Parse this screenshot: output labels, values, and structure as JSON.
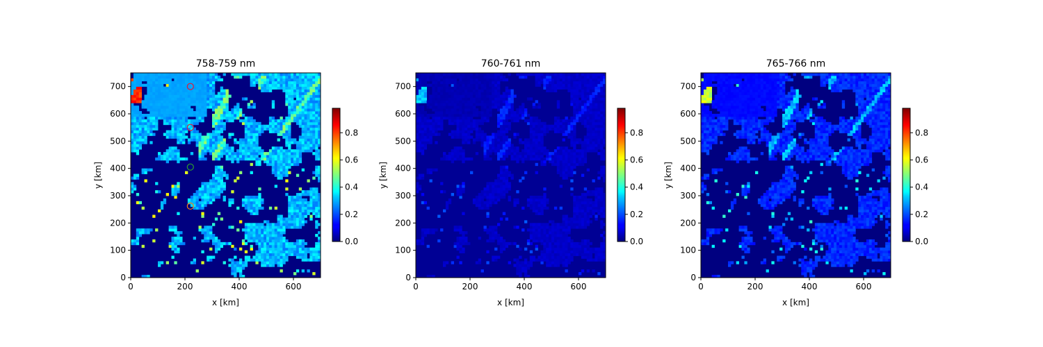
{
  "chart_data": [
    {
      "type": "heatmap",
      "title": "758-759 nm",
      "xlabel": "x [km]",
      "ylabel": "y [km]",
      "xlim": [
        0,
        700
      ],
      "ylim": [
        0,
        750
      ],
      "xticks": [
        0,
        200,
        400,
        600
      ],
      "yticks": [
        0,
        100,
        200,
        300,
        400,
        500,
        600,
        700
      ],
      "colormap": "jet",
      "colorbar": {
        "range": [
          0.0,
          0.98
        ],
        "ticks": [
          "0.0",
          "0.2",
          "0.4",
          "0.6",
          "0.8"
        ]
      },
      "background_level": 0.0,
      "cloud_level": 0.3,
      "upper_cloud_level": 0.28,
      "streak_level": 0.45,
      "markers": [
        {
          "x": 220,
          "y": 700,
          "color": "#e0193a"
        },
        {
          "x": 220,
          "y": 550,
          "color": "#e0193a"
        },
        {
          "x": 220,
          "y": 405,
          "color": "#2ca02c"
        },
        {
          "x": 220,
          "y": 262,
          "color": "#ff7f0e"
        }
      ]
    },
    {
      "type": "heatmap",
      "title": "760-761 nm",
      "xlabel": "x [km]",
      "ylabel": "y [km]",
      "xlim": [
        0,
        700
      ],
      "ylim": [
        0,
        750
      ],
      "xticks": [
        0,
        200,
        400,
        600
      ],
      "yticks": [
        0,
        100,
        200,
        300,
        400,
        500,
        600,
        700
      ],
      "colormap": "jet",
      "colorbar": {
        "range": [
          0.0,
          0.98
        ],
        "ticks": [
          "0.0",
          "0.2",
          "0.4",
          "0.6",
          "0.8"
        ]
      },
      "background_level": 0.02,
      "cloud_level": 0.07,
      "upper_cloud_level": 0.05,
      "streak_level": 0.15,
      "markers": []
    },
    {
      "type": "heatmap",
      "title": "765-766 nm",
      "xlabel": "x [km]",
      "ylabel": "y [km]",
      "xlim": [
        0,
        700
      ],
      "ylim": [
        0,
        750
      ],
      "xticks": [
        0,
        200,
        400,
        600
      ],
      "yticks": [
        0,
        100,
        200,
        300,
        400,
        500,
        600,
        700
      ],
      "colormap": "jet",
      "colorbar": {
        "range": [
          0.0,
          0.98
        ],
        "ticks": [
          "0.0",
          "0.2",
          "0.4",
          "0.6",
          "0.8"
        ]
      },
      "background_level": 0.0,
      "cloud_level": 0.16,
      "upper_cloud_level": 0.13,
      "streak_level": 0.3,
      "markers": []
    }
  ]
}
